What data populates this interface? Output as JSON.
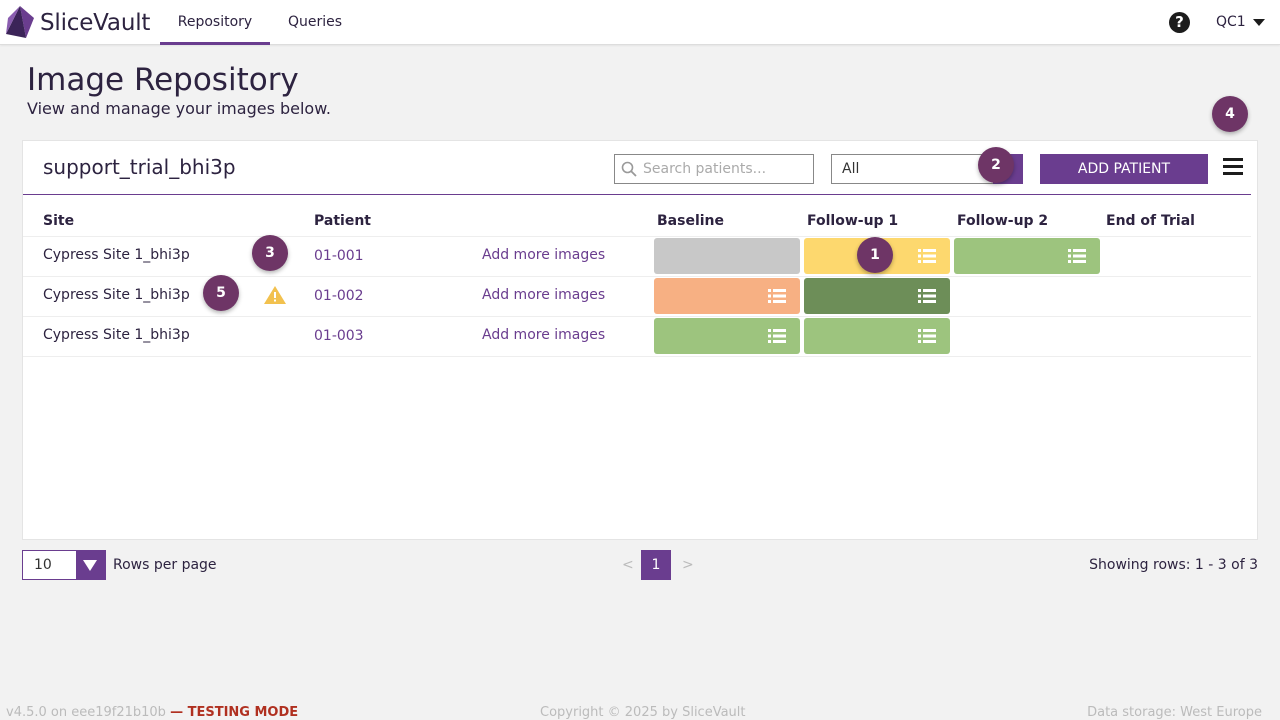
{
  "app": {
    "name": "SliceVault"
  },
  "nav": {
    "tabs": [
      {
        "label": "Repository",
        "active": true
      },
      {
        "label": "Queries",
        "active": false
      }
    ],
    "help_icon": "?",
    "user": "QC1"
  },
  "page": {
    "title": "Image Repository",
    "subtitle": "View and manage your images below."
  },
  "card": {
    "title": "support_trial_bhi3p",
    "search_placeholder": "Search patients...",
    "filter_value": "All",
    "add_button": "ADD PATIENT"
  },
  "table": {
    "headers": {
      "site": "Site",
      "patient": "Patient",
      "baseline": "Baseline",
      "followup1": "Follow-up 1",
      "followup2": "Follow-up 2",
      "end": "End of Trial"
    },
    "rows": [
      {
        "site": "Cypress Site 1_bhi3p",
        "patient": "01-001",
        "action": "Add more images",
        "warning": false
      },
      {
        "site": "Cypress Site 1_bhi3p",
        "patient": "01-002",
        "action": "Add more images",
        "warning": true
      },
      {
        "site": "Cypress Site 1_bhi3p",
        "patient": "01-003",
        "action": "Add more images",
        "warning": false
      }
    ],
    "timepoint_colors": {
      "grey": "#c8c8c8",
      "yellow": "#fdd86e",
      "light_green": "#9dc47e",
      "orange": "#f7b083",
      "dark_green": "#6d8e58",
      "warning": "#f2c14e"
    }
  },
  "pagination": {
    "rows_per_page": "10",
    "rows_label": "Rows per page",
    "prev": "<",
    "current": "1",
    "next": ">",
    "showing": "Showing rows: 1 - 3 of 3"
  },
  "footer": {
    "version": "v4.5.0 on eee19f21b10b",
    "mode": "— TESTING MODE",
    "copyright": "Copyright © 2025 by SliceVault",
    "storage": "Data storage: West Europe"
  },
  "badges": [
    "1",
    "2",
    "3",
    "4",
    "5"
  ],
  "colors": {
    "accent": "#6a3d8f",
    "badge": "#6e3566"
  }
}
